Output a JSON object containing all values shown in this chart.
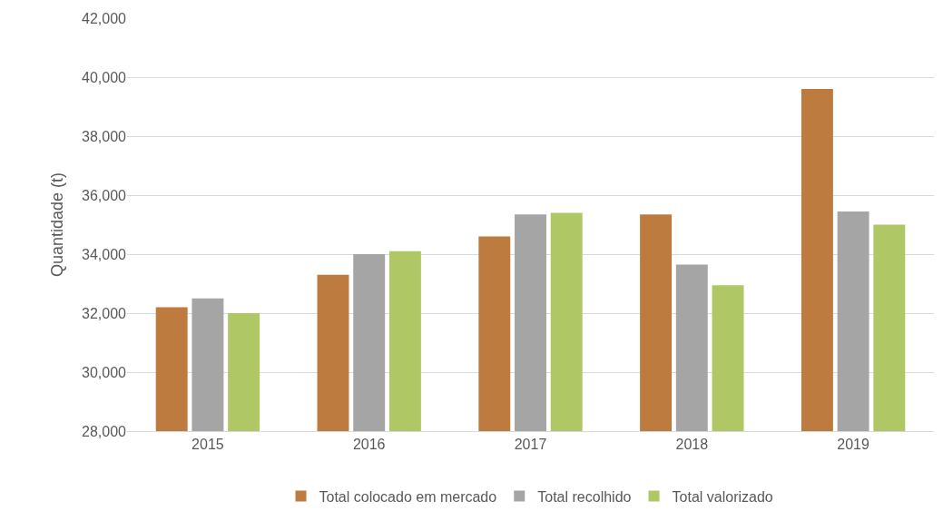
{
  "chart_data": {
    "type": "bar",
    "ylabel": "Quantidade (t)",
    "categories": [
      "2015",
      "2016",
      "2017",
      "2018",
      "2019"
    ],
    "series": [
      {
        "name": "Total colocado em mercado",
        "color": "#bd7b40",
        "values": [
          32200,
          33300,
          34600,
          35350,
          39600
        ]
      },
      {
        "name": "Total recolhido",
        "color": "#a5a5a5",
        "values": [
          32500,
          34000,
          35350,
          33650,
          35450
        ]
      },
      {
        "name": "Total valorizado",
        "color": "#afc765",
        "values": [
          32000,
          34100,
          35400,
          32950,
          35000
        ]
      }
    ],
    "ylim": [
      28000,
      42000
    ],
    "yticks": [
      {
        "value": 28000,
        "label": "28,000"
      },
      {
        "value": 30000,
        "label": "30,000"
      },
      {
        "value": 32000,
        "label": "32,000"
      },
      {
        "value": 34000,
        "label": "34,000"
      },
      {
        "value": 36000,
        "label": "36,000"
      },
      {
        "value": 38000,
        "label": "38,000"
      },
      {
        "value": 40000,
        "label": "40,000"
      },
      {
        "value": 42000,
        "label": "42,000"
      }
    ],
    "grid": "y",
    "legend": "bottom"
  }
}
